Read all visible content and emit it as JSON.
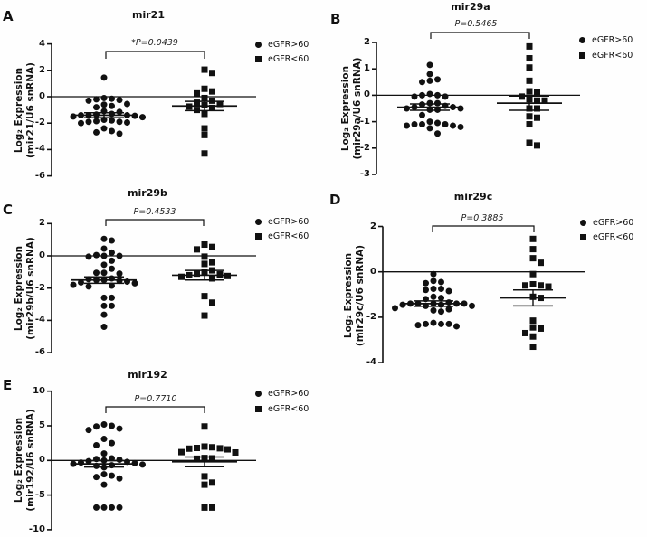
{
  "chart_data": [
    {
      "panel": "A",
      "type": "scatter",
      "title": "mir21",
      "p_value": "*P=0.0439",
      "ylabel_line1": "Log₂ Expression",
      "ylabel_line2": "(mir21/U6 snRNA)",
      "ylim": [
        -6,
        4
      ],
      "yticks": [
        4,
        2,
        0,
        -2,
        -4,
        -6
      ],
      "series": [
        {
          "name": "eGFR>60",
          "marker": "circle",
          "mean": -1.4,
          "sem": 0.18,
          "values": [
            1.45,
            -0.1,
            -0.15,
            -0.2,
            -0.25,
            -0.3,
            -0.55,
            -0.6,
            -0.7,
            -0.8,
            -1.1,
            -1.15,
            -1.3,
            -1.35,
            -1.4,
            -1.4,
            -1.4,
            -1.45,
            -1.5,
            -1.55,
            -1.75,
            -1.8,
            -1.85,
            -1.9,
            -1.9,
            -1.95,
            -2.0,
            -2.4,
            -2.6,
            -2.7,
            -2.8
          ]
        },
        {
          "name": "eGFR<60",
          "marker": "square",
          "mean": -0.7,
          "sem": 0.35,
          "values": [
            2.05,
            1.8,
            0.6,
            0.4,
            0.25,
            -0.1,
            -0.3,
            -0.45,
            -0.55,
            -0.65,
            -0.75,
            -0.85,
            -1.0,
            -1.3,
            -2.4,
            -2.9,
            -4.3
          ]
        }
      ]
    },
    {
      "panel": "B",
      "type": "scatter",
      "title": "mir29a",
      "p_value": "P=0.5465",
      "ylabel_line1": "Log₂ Expression",
      "ylabel_line2": "(mir29a/U6 snRNA)",
      "ylim": [
        -3,
        2
      ],
      "yticks": [
        2,
        1,
        0,
        -1,
        -2,
        -3
      ],
      "series": [
        {
          "name": "eGFR>60",
          "marker": "circle",
          "mean": -0.45,
          "sem": 0.12,
          "values": [
            1.15,
            0.8,
            0.6,
            0.55,
            0.5,
            0.05,
            0.0,
            0.0,
            -0.05,
            -0.05,
            -0.3,
            -0.3,
            -0.35,
            -0.4,
            -0.45,
            -0.45,
            -0.5,
            -0.5,
            -0.55,
            -0.55,
            -0.75,
            -1.0,
            -1.05,
            -1.1,
            -1.1,
            -1.1,
            -1.15,
            -1.15,
            -1.2,
            -1.25,
            -1.45
          ]
        },
        {
          "name": "eGFR<60",
          "marker": "square",
          "mean": -0.3,
          "sem": 0.27,
          "values": [
            1.85,
            1.4,
            1.05,
            0.55,
            0.15,
            0.1,
            -0.05,
            -0.15,
            -0.2,
            -0.2,
            -0.5,
            -0.5,
            -0.8,
            -0.85,
            -1.1,
            -1.8,
            -1.9
          ]
        }
      ]
    },
    {
      "panel": "C",
      "type": "scatter",
      "title": "mir29b",
      "p_value": "P=0.4533",
      "ylabel_line1": "Log₂ Expression",
      "ylabel_line2": "(mir29b/U6 snRNA)",
      "ylim": [
        -6,
        2
      ],
      "yticks": [
        2,
        0,
        -2,
        -4,
        -6
      ],
      "series": [
        {
          "name": "eGFR>60",
          "marker": "circle",
          "mean": -1.5,
          "sem": 0.2,
          "values": [
            1.05,
            0.95,
            0.45,
            0.2,
            0.05,
            0.0,
            0.0,
            -0.05,
            -0.3,
            -0.55,
            -0.8,
            -1.05,
            -1.05,
            -1.1,
            -1.4,
            -1.45,
            -1.5,
            -1.5,
            -1.55,
            -1.6,
            -1.65,
            -1.7,
            -1.8,
            -1.85,
            -1.9,
            -2.6,
            -2.6,
            -3.1,
            -3.1,
            -3.65,
            -4.4
          ]
        },
        {
          "name": "eGFR<60",
          "marker": "square",
          "mean": -1.2,
          "sem": 0.3,
          "values": [
            0.7,
            0.55,
            0.4,
            -0.05,
            -0.4,
            -0.5,
            -0.9,
            -1.0,
            -1.1,
            -1.15,
            -1.2,
            -1.25,
            -1.3,
            -1.4,
            -2.5,
            -2.9,
            -3.7
          ]
        }
      ]
    },
    {
      "panel": "D",
      "type": "scatter",
      "title": "mir29c",
      "p_value": "P=0.3885",
      "ylabel_line1": "Log₂ Expression",
      "ylabel_line2": "(mir29c/U6 snRNA)",
      "ylim": [
        -4,
        2
      ],
      "yticks": [
        2,
        0,
        -2,
        -4
      ],
      "series": [
        {
          "name": "eGFR>60",
          "marker": "circle",
          "mean": -1.4,
          "sem": 0.12,
          "values": [
            -0.1,
            -0.4,
            -0.45,
            -0.5,
            -0.75,
            -0.75,
            -0.8,
            -0.85,
            -1.1,
            -1.15,
            -1.2,
            -1.35,
            -1.4,
            -1.4,
            -1.4,
            -1.4,
            -1.4,
            -1.45,
            -1.45,
            -1.5,
            -1.5,
            -1.6,
            -1.65,
            -1.7,
            -1.75,
            -2.25,
            -2.3,
            -2.3,
            -2.3,
            -2.35,
            -2.4
          ]
        },
        {
          "name": "eGFR<60",
          "marker": "square",
          "mean": -1.15,
          "sem": 0.35,
          "values": [
            1.45,
            1.0,
            0.6,
            0.4,
            -0.1,
            -0.55,
            -0.6,
            -0.6,
            -0.65,
            -1.1,
            -1.15,
            -2.15,
            -2.45,
            -2.5,
            -2.7,
            -2.85,
            -3.3
          ]
        }
      ]
    },
    {
      "panel": "E",
      "type": "scatter",
      "title": "mir192",
      "p_value": "P=0.7710",
      "ylabel_line1": "Log₂ Expression",
      "ylabel_line2": "(mir192/U6 snRNA)",
      "ylim": [
        -10,
        10
      ],
      "yticks": [
        10,
        5,
        0,
        -5,
        -10
      ],
      "series": [
        {
          "name": "eGFR>60",
          "marker": "circle",
          "mean": -0.5,
          "sem": 0.45,
          "values": [
            5.2,
            5.0,
            4.9,
            4.6,
            4.4,
            3.1,
            2.5,
            2.2,
            1.0,
            0.3,
            0.2,
            0.1,
            0.0,
            -0.1,
            -0.2,
            -0.3,
            -0.4,
            -0.5,
            -0.6,
            -0.7,
            -0.8,
            -1.0,
            -2.0,
            -2.2,
            -2.4,
            -2.6,
            -3.5,
            -6.8,
            -6.8,
            -6.8,
            -6.8
          ]
        },
        {
          "name": "eGFR<60",
          "marker": "square",
          "mean": -0.2,
          "sem": 0.7,
          "values": [
            4.9,
            2.0,
            1.9,
            1.8,
            1.75,
            1.7,
            1.6,
            1.2,
            1.15,
            0.35,
            0.3,
            0.25,
            -2.3,
            -3.2,
            -3.5,
            -6.8,
            -6.8
          ]
        }
      ]
    }
  ]
}
